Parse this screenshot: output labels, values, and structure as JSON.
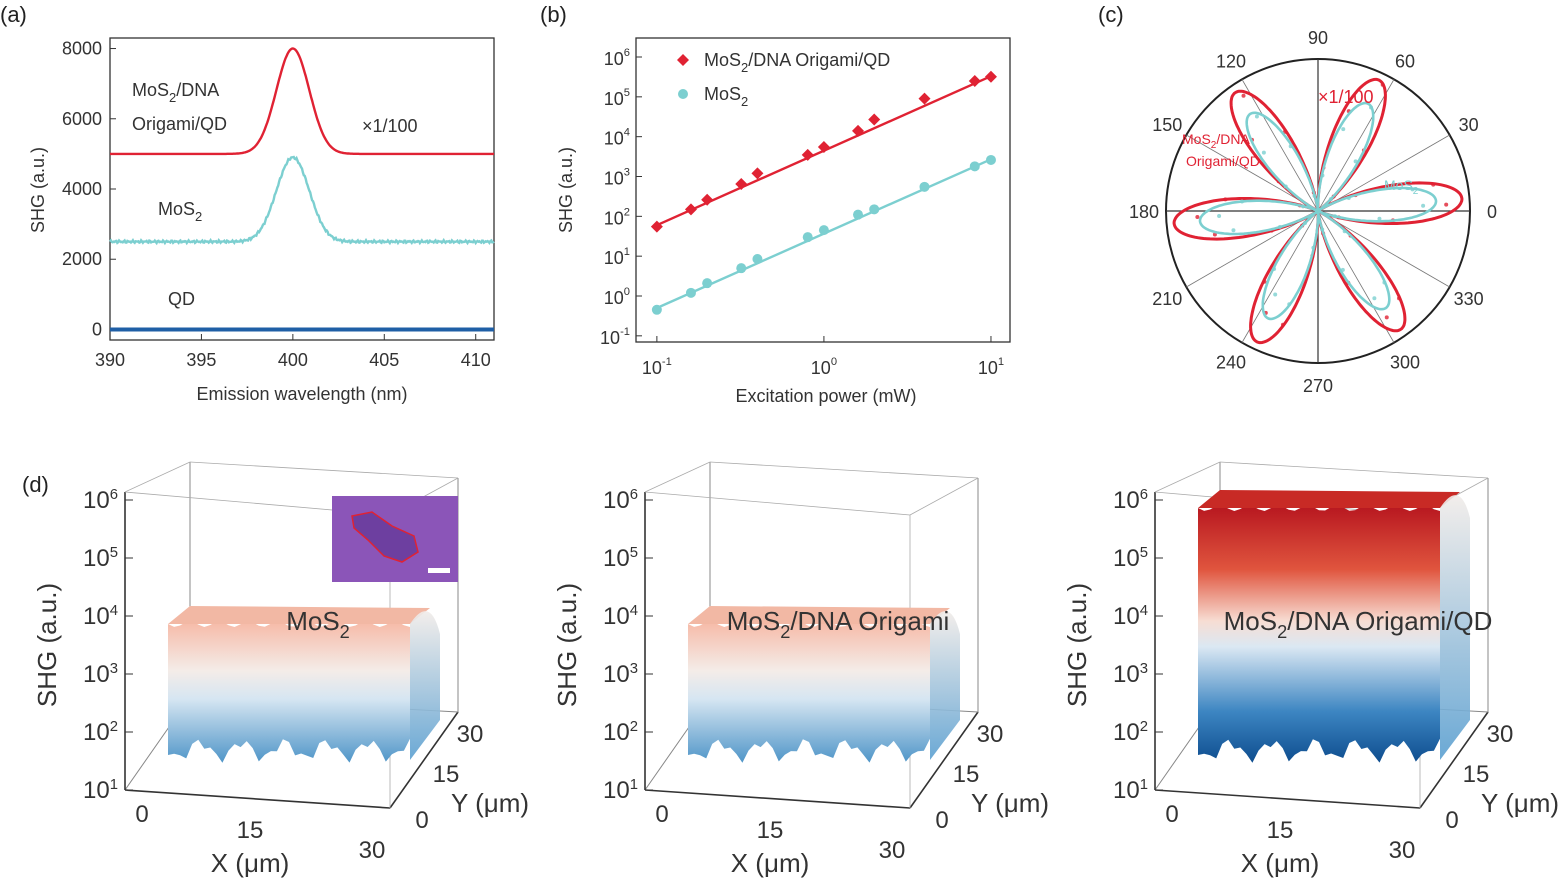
{
  "colors": {
    "red": "#e02233",
    "cyan": "#7ccfd0",
    "blue": "#1f5fa6",
    "axis": "#333333"
  },
  "panel_labels": [
    "(a)",
    "(b)",
    "(c)",
    "(d)"
  ],
  "chart_data": [
    {
      "panel": "(a)",
      "type": "line",
      "xlabel": "Emission wavelength (nm)",
      "ylabel": "SHG (a.u.)",
      "xlim": [
        390,
        411
      ],
      "ylim": [
        -300,
        8300
      ],
      "xticks": [
        390,
        395,
        400,
        405,
        410
      ],
      "yticks": [
        0,
        2000,
        4000,
        6000,
        8000
      ],
      "scale_note": "×1/100",
      "series": [
        {
          "name": "MoS2/DNA Origami/QD",
          "label_line1": "MoS",
          "label_line1_sub": "2",
          "label_line1_rest": "/DNA",
          "label_line2": "Origami/QD",
          "baseline": 5000,
          "peak_center": 400,
          "peak_height": 3000,
          "peak_sigma": 0.9,
          "color": "#e02233"
        },
        {
          "name": "MoS2",
          "label": "MoS",
          "label_sub": "2",
          "baseline": 2500,
          "peak_center": 400,
          "peak_height": 2400,
          "peak_sigma": 0.9,
          "color": "#7ccfd0"
        },
        {
          "name": "QD",
          "label": "QD",
          "baseline": 0,
          "peak_center": 400,
          "peak_height": 0,
          "peak_sigma": 0.9,
          "color": "#1f5fa6"
        }
      ]
    },
    {
      "panel": "(b)",
      "type": "scatter",
      "xscale": "log",
      "yscale": "log",
      "xlabel": "Excitation power (mW)",
      "ylabel": "SHG (a.u.)",
      "xlim": [
        0.075,
        13
      ],
      "ylim": [
        0.07,
        3000000
      ],
      "xticks": [
        {
          "base": "10",
          "exp": "-1",
          "v": 0.1
        },
        {
          "base": "10",
          "exp": "0",
          "v": 1
        },
        {
          "base": "10",
          "exp": "1",
          "v": 10
        }
      ],
      "yticks": [
        {
          "base": "10",
          "exp": "-1",
          "v": 0.1
        },
        {
          "base": "10",
          "exp": "0",
          "v": 1
        },
        {
          "base": "10",
          "exp": "1",
          "v": 10
        },
        {
          "base": "10",
          "exp": "2",
          "v": 100
        },
        {
          "base": "10",
          "exp": "3",
          "v": 1000
        },
        {
          "base": "10",
          "exp": "4",
          "v": 10000
        },
        {
          "base": "10",
          "exp": "5",
          "v": 100000
        },
        {
          "base": "10",
          "exp": "6",
          "v": 1000000
        }
      ],
      "legend": [
        {
          "main": "MoS",
          "sub": "2",
          "rest": "/DNA Origami/QD",
          "color": "#e02233",
          "marker": "diamond"
        },
        {
          "main": "MoS",
          "sub": "2",
          "rest": "",
          "color": "#7ccfd0",
          "marker": "circle"
        }
      ],
      "series": [
        {
          "name": "MoS2/DNA Origami/QD",
          "color": "#e02233",
          "x": [
            0.1,
            0.16,
            0.2,
            0.32,
            0.4,
            0.8,
            1.0,
            1.6,
            2.0,
            4.0,
            8.0,
            10.0
          ],
          "y": [
            55,
            150,
            260,
            650,
            1200,
            3500,
            5500,
            14000,
            27000,
            90000,
            250000,
            320000
          ],
          "fit": [
            [
              0.1,
              60
            ],
            [
              10,
              330000
            ]
          ]
        },
        {
          "name": "MoS2",
          "color": "#7ccfd0",
          "x": [
            0.1,
            0.16,
            0.2,
            0.32,
            0.4,
            0.8,
            1.0,
            1.6,
            2.0,
            4.0,
            8.0,
            10.0
          ],
          "y": [
            0.45,
            1.2,
            2.1,
            5.0,
            8.5,
            30,
            45,
            110,
            150,
            550,
            1800,
            2600
          ],
          "fit": [
            [
              0.1,
              0.5
            ],
            [
              10,
              2700
            ]
          ]
        }
      ]
    },
    {
      "panel": "(c)",
      "type": "polar",
      "angle_labels": [
        "0",
        "30",
        "60",
        "90",
        "120",
        "150",
        "180",
        "210",
        "240",
        "270",
        "300",
        "330"
      ],
      "scale_note": "×1/100",
      "series": [
        {
          "name": "MoS2/DNA Origami/QD",
          "label_main": "MoS",
          "label_sub": "2",
          "label_rest": "/DNA",
          "label_line2": "Origami/QD",
          "color": "#e02233",
          "petals": 6,
          "rmax": 1.0,
          "rotation_deg": 5
        },
        {
          "name": "MoS2",
          "label_main": "MoS",
          "label_sub": "2",
          "color": "#7ccfd0",
          "petals": 6,
          "rmax": 0.82,
          "rotation_deg": 5
        }
      ]
    },
    {
      "panel": "(d)",
      "type": "surface3d",
      "xlabel": "X (μm)",
      "ylabel": "Y (μm)",
      "zlabel": "SHG (a.u.)",
      "xticks": [
        "0",
        "15",
        "30"
      ],
      "yticks": [
        "0",
        "15",
        "30"
      ],
      "zticks": [
        {
          "base": "10",
          "exp": "1"
        },
        {
          "base": "10",
          "exp": "2"
        },
        {
          "base": "10",
          "exp": "3"
        },
        {
          "base": "10",
          "exp": "4"
        },
        {
          "base": "10",
          "exp": "5"
        },
        {
          "base": "10",
          "exp": "6"
        }
      ],
      "surfaces": [
        {
          "title_main": "MoS",
          "title_sub": "2",
          "title_rest": "",
          "top_level": 10000,
          "base_level": 100
        },
        {
          "title_main": "MoS",
          "title_sub": "2",
          "title_rest": "/DNA Origami",
          "top_level": 10000,
          "base_level": 100
        },
        {
          "title_main": "MoS",
          "title_sub": "2",
          "title_rest": "/DNA Origami/QD",
          "top_level": 1000000,
          "base_level": 100
        }
      ]
    }
  ]
}
